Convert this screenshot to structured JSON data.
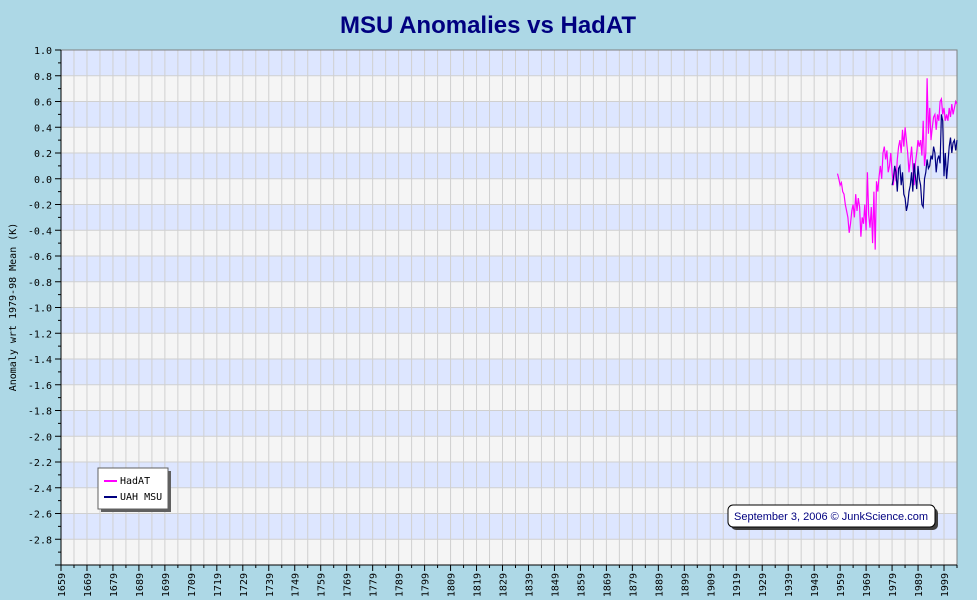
{
  "chart_data": {
    "type": "line",
    "title": "MSU Anomalies vs HadAT",
    "xlabel": "",
    "ylabel": "Anomaly wrt 1979-98 Mean (K)",
    "xlim": [
      1659,
      2004
    ],
    "ylim": [
      -3.0,
      1.0
    ],
    "x_tick_labels": [
      "1659",
      "1669",
      "1679",
      "1689",
      "1699",
      "1709",
      "1719",
      "1729",
      "1739",
      "1749",
      "1759",
      "1769",
      "1779",
      "1789",
      "1799",
      "1809",
      "1819",
      "1829",
      "1839",
      "1849",
      "1859",
      "1869",
      "1879",
      "1889",
      "1899",
      "1909",
      "1919",
      "1929",
      "1939",
      "1949",
      "1959",
      "1969",
      "1979",
      "1989",
      "1999"
    ],
    "y_tick_labels": [
      "1.0",
      "0.8",
      "0.6",
      "0.4",
      "0.2",
      "0.0",
      "-0.2",
      "-0.4",
      "-0.6",
      "-0.8",
      "-1.0",
      "-1.2",
      "-1.4",
      "-1.6",
      "-1.8",
      "-2.0",
      "-2.2",
      "-2.4",
      "-2.6",
      "-2.8"
    ],
    "grid": true,
    "legend_position": "bottom-left",
    "annotation": "September 3, 2006 © JunkScience.com",
    "series": [
      {
        "name": "HadAT",
        "color": "#ff00ff",
        "x": [
          1958.0,
          1958.5,
          1959.0,
          1959.5,
          1960.0,
          1960.5,
          1961.0,
          1961.5,
          1962.0,
          1962.5,
          1963.0,
          1963.5,
          1964.0,
          1964.5,
          1965.0,
          1965.5,
          1966.0,
          1966.5,
          1967.0,
          1967.5,
          1968.0,
          1968.5,
          1969.0,
          1969.5,
          1970.0,
          1970.5,
          1971.0,
          1971.5,
          1972.0,
          1972.5,
          1973.0,
          1973.5,
          1974.0,
          1974.5,
          1975.0,
          1975.5,
          1976.0,
          1976.5,
          1977.0,
          1977.5,
          1978.0,
          1978.5,
          1979.0,
          1979.5,
          1980.0,
          1980.5,
          1981.0,
          1981.5,
          1982.0,
          1982.5,
          1983.0,
          1983.5,
          1984.0,
          1984.5,
          1985.0,
          1985.5,
          1986.0,
          1986.5,
          1987.0,
          1987.5,
          1988.0,
          1988.5,
          1989.0,
          1989.5,
          1990.0,
          1990.5,
          1991.0,
          1991.5,
          1992.0,
          1992.5,
          1993.0,
          1993.5,
          1994.0,
          1994.5,
          1995.0,
          1995.5,
          1996.0,
          1996.5,
          1997.0,
          1997.5,
          1998.0,
          1998.5,
          1999.0,
          1999.5,
          2000.0,
          2000.5,
          2001.0,
          2001.5,
          2002.0,
          2002.5,
          2003.0,
          2003.5,
          2004.0
        ],
        "y": [
          0.04,
          0.0,
          -0.05,
          -0.03,
          -0.1,
          -0.12,
          -0.2,
          -0.25,
          -0.3,
          -0.42,
          -0.35,
          -0.25,
          -0.2,
          -0.3,
          -0.12,
          -0.25,
          -0.15,
          -0.22,
          -0.45,
          -0.3,
          -0.35,
          -0.2,
          -0.4,
          0.05,
          -0.28,
          -0.38,
          -0.22,
          -0.5,
          -0.1,
          -0.55,
          -0.02,
          -0.1,
          0.02,
          0.1,
          0.0,
          0.2,
          0.25,
          0.15,
          0.22,
          0.05,
          0.1,
          0.2,
          0.05,
          -0.05,
          0.1,
          -0.02,
          0.15,
          0.25,
          0.3,
          0.2,
          0.38,
          0.25,
          0.4,
          0.3,
          0.2,
          0.05,
          0.15,
          0.25,
          0.1,
          -0.05,
          0.12,
          0.2,
          0.3,
          0.25,
          0.3,
          0.18,
          0.45,
          0.1,
          0.2,
          0.78,
          0.35,
          0.55,
          0.3,
          0.4,
          0.48,
          0.5,
          0.38,
          0.5,
          0.45,
          0.6,
          0.62,
          0.5,
          0.55,
          0.45,
          0.5,
          0.45,
          0.55,
          0.48,
          0.58,
          0.5,
          0.55,
          0.6,
          0.58
        ]
      },
      {
        "name": "UAH MSU",
        "color": "#000080",
        "x": [
          1979.0,
          1979.5,
          1980.0,
          1980.5,
          1981.0,
          1981.5,
          1982.0,
          1982.5,
          1983.0,
          1983.5,
          1984.0,
          1984.5,
          1985.0,
          1985.5,
          1986.0,
          1986.5,
          1987.0,
          1987.5,
          1988.0,
          1988.5,
          1989.0,
          1989.5,
          1990.0,
          1990.5,
          1991.0,
          1991.5,
          1992.0,
          1992.5,
          1993.0,
          1993.5,
          1994.0,
          1994.5,
          1995.0,
          1995.5,
          1996.0,
          1996.5,
          1997.0,
          1997.5,
          1998.0,
          1998.5,
          1999.0,
          1999.5,
          2000.0,
          2000.5,
          2001.0,
          2001.5,
          2002.0,
          2002.5,
          2003.0,
          2003.5,
          2004.0
        ],
        "y": [
          -0.05,
          0.0,
          0.1,
          0.05,
          -0.1,
          0.08,
          0.1,
          -0.05,
          0.05,
          -0.12,
          -0.15,
          -0.25,
          -0.2,
          -0.1,
          -0.05,
          0.05,
          -0.1,
          0.12,
          0.02,
          -0.08,
          0.1,
          0.0,
          -0.05,
          -0.2,
          -0.22,
          0.0,
          0.05,
          0.15,
          0.08,
          0.1,
          0.18,
          0.15,
          0.25,
          0.2,
          0.05,
          0.15,
          0.18,
          0.12,
          0.5,
          0.45,
          0.02,
          0.2,
          0.0,
          0.12,
          0.25,
          0.32,
          0.2,
          0.28,
          0.3,
          0.22,
          0.3
        ]
      }
    ]
  },
  "colors": {
    "background": "#add8e6",
    "band_dark": "#dde6ff",
    "band_light": "#f5f5f5",
    "grid": "#d0d0d0",
    "title": "#000080"
  }
}
